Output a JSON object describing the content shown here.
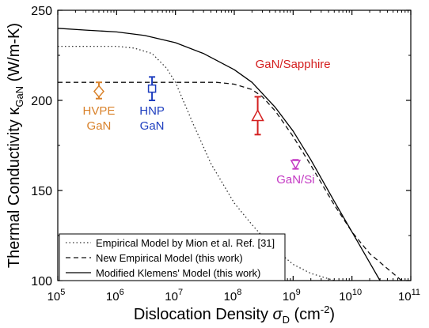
{
  "chart_data": {
    "type": "line",
    "xscale": "log",
    "xlim": [
      100000,
      100000000000
    ],
    "ylim": [
      100,
      250
    ],
    "xlabel": {
      "main": "Dislocation Density ",
      "symbol": "σ",
      "symbol_sub": "D",
      "unit_pre": " (cm",
      "unit_sup": "-2",
      "unit_post": ")"
    },
    "ylabel": {
      "main": "Thermal Conductivity κ",
      "sub": "GaN",
      "unit": " (W/m-K)"
    },
    "x_ticks": [
      {
        "value": 100000,
        "base": "10",
        "exp": "5"
      },
      {
        "value": 1000000,
        "base": "10",
        "exp": "6"
      },
      {
        "value": 10000000,
        "base": "10",
        "exp": "7"
      },
      {
        "value": 100000000,
        "base": "10",
        "exp": "8"
      },
      {
        "value": 1000000000,
        "base": "10",
        "exp": "9"
      },
      {
        "value": 10000000000,
        "base": "10",
        "exp": "10"
      },
      {
        "value": 100000000000,
        "base": "10",
        "exp": "11"
      }
    ],
    "y_ticks": [
      {
        "value": 100,
        "label": "100"
      },
      {
        "value": 150,
        "label": "150"
      },
      {
        "value": 200,
        "label": "200"
      },
      {
        "value": 250,
        "label": "250"
      }
    ],
    "series": [
      {
        "name": "Empirical Model by Mion et al. Ref. [31]",
        "style": "dotted",
        "color": "#333333",
        "x": [
          100000,
          400000,
          1000000,
          2000000,
          4000000,
          7000000,
          10000000,
          20000000,
          40000000,
          100000000,
          200000000,
          400000000,
          1000000000,
          2000000000,
          4000000000,
          5000000000
        ],
        "y": [
          230,
          230,
          230,
          229,
          226,
          218,
          210,
          187,
          165,
          143,
          131,
          120,
          109,
          104,
          101,
          100
        ]
      },
      {
        "name": "New Empirical Model (this work)",
        "style": "dashed",
        "color": "#111111",
        "x": [
          100000,
          1000000,
          10000000,
          50000000,
          100000000,
          200000000,
          300000000,
          500000000,
          1000000000,
          2000000000,
          5000000000,
          10000000000,
          20000000000,
          50000000000,
          70000000000
        ],
        "y": [
          210,
          210,
          210,
          210,
          209,
          206,
          202,
          194,
          180,
          164,
          142,
          127,
          115,
          104,
          100
        ]
      },
      {
        "name": "Modified Klemens' Model (this work)",
        "style": "solid",
        "color": "#000000",
        "x": [
          100000,
          300000,
          1000000,
          3000000,
          10000000,
          30000000,
          100000000,
          200000000,
          500000000,
          1000000000,
          2000000000,
          5000000000,
          10000000000,
          20000000000,
          30000000000
        ],
        "y": [
          240,
          239,
          238,
          236,
          232,
          226,
          217,
          210,
          196,
          183,
          167,
          144,
          127,
          110,
          100
        ]
      }
    ],
    "points": [
      {
        "label": "HVPE GaN",
        "label_lines": [
          "HVPE",
          "GaN"
        ],
        "color": "#d9822b",
        "marker": "diamond",
        "x": 500000,
        "y": 205,
        "err": [
          201,
          210
        ],
        "text_x": 500000,
        "text_y": 192,
        "anchor": "middle"
      },
      {
        "label": "HNP GaN",
        "label_lines": [
          "HNP",
          "GaN"
        ],
        "color": "#1f3fbf",
        "marker": "square",
        "x": 4000000,
        "y": 206.5,
        "err": [
          200,
          213
        ],
        "text_x": 4000000,
        "text_y": 192,
        "anchor": "middle"
      },
      {
        "label": "GaN/Sapphire",
        "label_lines": [
          "GaN/Sapphire"
        ],
        "color": "#d42020",
        "marker": "triangle-up",
        "x": 250000000,
        "y": 191,
        "err": [
          181,
          202
        ],
        "text_x": 250000000,
        "text_y": 218,
        "anchor": "start"
      },
      {
        "label": "GaN/Si",
        "label_lines": [
          "GaN/Si"
        ],
        "color": "#c43ac4",
        "marker": "triangle-down",
        "x": 1100000000,
        "y": 164.5,
        "err": [
          162,
          167
        ],
        "text_x": 1100000000,
        "text_y": 154,
        "anchor": "middle"
      }
    ],
    "legend_position": "bottom-left"
  }
}
